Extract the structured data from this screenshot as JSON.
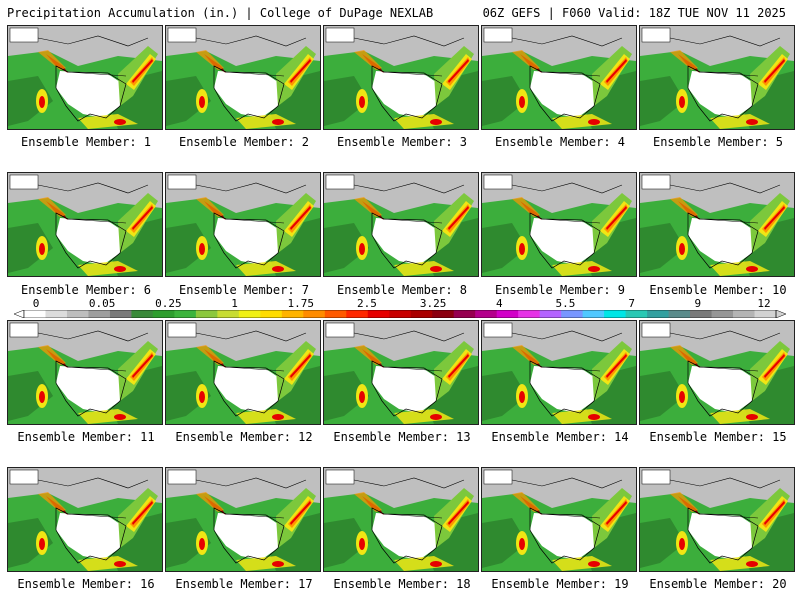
{
  "header": {
    "title_left": "Precipitation Accumulation (in.) | College of DuPage NEXLAB",
    "title_right": "06Z GEFS | F060 Valid: 18Z TUE NOV 11 2025"
  },
  "caption_prefix": "Ensemble Member:",
  "members": [
    {
      "label": "Ensemble Member: 1"
    },
    {
      "label": "Ensemble Member: 2"
    },
    {
      "label": "Ensemble Member: 3"
    },
    {
      "label": "Ensemble Member: 4"
    },
    {
      "label": "Ensemble Member: 5"
    },
    {
      "label": "Ensemble Member: 6"
    },
    {
      "label": "Ensemble Member: 7"
    },
    {
      "label": "Ensemble Member: 8"
    },
    {
      "label": "Ensemble Member: 9"
    },
    {
      "label": "Ensemble Member: 10"
    },
    {
      "label": "Ensemble Member: 11"
    },
    {
      "label": "Ensemble Member: 12"
    },
    {
      "label": "Ensemble Member: 13"
    },
    {
      "label": "Ensemble Member: 14"
    },
    {
      "label": "Ensemble Member: 15"
    },
    {
      "label": "Ensemble Member: 16"
    },
    {
      "label": "Ensemble Member: 17"
    },
    {
      "label": "Ensemble Member: 18"
    },
    {
      "label": "Ensemble Member: 19"
    },
    {
      "label": "Ensemble Member: 20"
    }
  ],
  "colorbar": {
    "labels": [
      "0",
      "0.05",
      "0.25",
      "1",
      "1.75",
      "2.5",
      "3.25",
      "4",
      "5.5",
      "7",
      "9",
      "12"
    ],
    "colors": [
      "#ffffff",
      "#dcdcdc",
      "#bebebe",
      "#9e9e9e",
      "#7a7a7a",
      "#3a8a3a",
      "#2e9e2e",
      "#3cb43c",
      "#8cc83c",
      "#c8dc32",
      "#f0f014",
      "#ffdc00",
      "#ffb400",
      "#ff8c00",
      "#ff5a00",
      "#ff2800",
      "#e60000",
      "#c80000",
      "#aa0000",
      "#8c0010",
      "#960050",
      "#b4008c",
      "#d200c8",
      "#e632e6",
      "#b464ff",
      "#7896ff",
      "#50c8ff",
      "#00e6e6",
      "#28c8b4",
      "#32a0a0",
      "#5a8c8c",
      "#7a7a7a",
      "#969696",
      "#b4b4b4",
      "#d2d2d2"
    ]
  },
  "map_colors": {
    "land_white": "#ffffff",
    "gray": "#bfbfbf",
    "green_dark": "#2f8a2f",
    "green": "#3cae3c",
    "green_light": "#7cc83c",
    "yellow": "#f0e614",
    "orange": "#ff9600",
    "red": "#e60000",
    "darkred": "#8c0000"
  }
}
